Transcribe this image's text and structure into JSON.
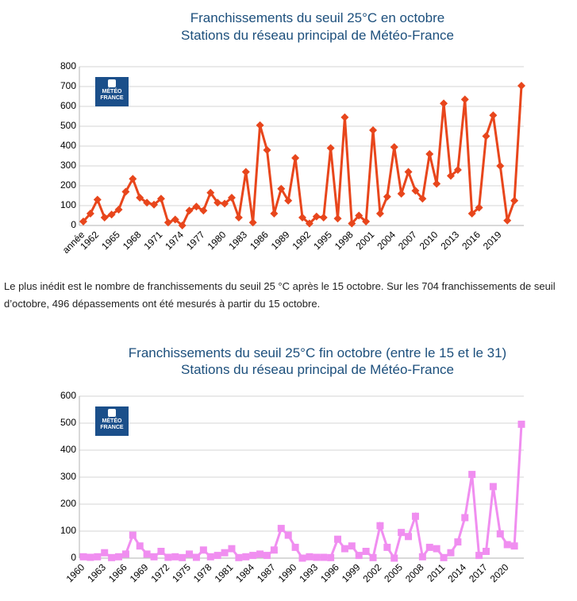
{
  "chart_data": [
    {
      "type": "line",
      "title": [
        "Franchissements du seuil 25°C en octobre",
        "Stations du réseau principal de Météo-France"
      ],
      "categories": [
        "année",
        null,
        "1962",
        null,
        null,
        "1965",
        null,
        null,
        "1968",
        null,
        null,
        "1971",
        null,
        null,
        "1974",
        null,
        null,
        "1977",
        null,
        null,
        "1980",
        null,
        null,
        "1983",
        null,
        null,
        "1986",
        null,
        null,
        "1989",
        null,
        null,
        "1992",
        null,
        null,
        "1995",
        null,
        null,
        "1998",
        null,
        null,
        "2001",
        null,
        null,
        "2004",
        null,
        null,
        "2007",
        null,
        null,
        "2010",
        null,
        null,
        "2013",
        null,
        null,
        "2016",
        null,
        null,
        "2019",
        null,
        null,
        null
      ],
      "series": [
        {
          "color": "#e8461c",
          "marker": "diamond",
          "values": [
            20,
            60,
            130,
            40,
            55,
            80,
            170,
            235,
            140,
            115,
            105,
            135,
            15,
            30,
            0,
            75,
            95,
            75,
            165,
            115,
            110,
            140,
            40,
            270,
            15,
            505,
            380,
            60,
            185,
            125,
            340,
            40,
            10,
            45,
            40,
            390,
            35,
            545,
            10,
            50,
            20,
            480,
            60,
            145,
            395,
            160,
            270,
            175,
            135,
            360,
            210,
            615,
            250,
            280,
            635,
            60,
            90,
            450,
            555,
            300,
            25,
            125,
            704
          ]
        }
      ],
      "ylim": [
        0,
        800
      ],
      "yticks": [
        0,
        100,
        200,
        300,
        400,
        500,
        600,
        700,
        800
      ],
      "grid": true
    },
    {
      "type": "line",
      "title": [
        "Franchissements du seuil 25°C fin octobre (entre le 15 et le 31)",
        "Stations du réseau principal de Météo-France"
      ],
      "categories": [
        "1960",
        null,
        null,
        "1963",
        null,
        null,
        "1966",
        null,
        null,
        "1969",
        null,
        null,
        "1972",
        null,
        null,
        "1975",
        null,
        null,
        "1978",
        null,
        null,
        "1981",
        null,
        null,
        "1984",
        null,
        null,
        "1987",
        null,
        null,
        "1990",
        null,
        null,
        "1993",
        null,
        null,
        "1996",
        null,
        null,
        "1999",
        null,
        null,
        "2002",
        null,
        null,
        "2005",
        null,
        null,
        "2008",
        null,
        null,
        "2011",
        null,
        null,
        "2014",
        null,
        null,
        "2017",
        null,
        null,
        "2020",
        null,
        null
      ],
      "series": [
        {
          "color": "#f08ef0",
          "marker": "square",
          "values": [
            5,
            3,
            5,
            20,
            2,
            5,
            15,
            85,
            45,
            15,
            5,
            25,
            3,
            5,
            2,
            15,
            3,
            30,
            5,
            10,
            20,
            35,
            2,
            5,
            10,
            15,
            10,
            30,
            110,
            85,
            40,
            0,
            5,
            3,
            3,
            2,
            70,
            35,
            45,
            10,
            25,
            2,
            120,
            40,
            0,
            95,
            80,
            155,
            5,
            40,
            35,
            2,
            20,
            60,
            150,
            310,
            10,
            25,
            265,
            90,
            50,
            45,
            496
          ]
        }
      ],
      "ylim": [
        0,
        600
      ],
      "yticks": [
        0,
        100,
        200,
        300,
        400,
        500,
        600
      ],
      "grid": true
    }
  ],
  "logo_lines": [
    "MÉTÉO",
    "FRANCE"
  ],
  "paragraph": "Le plus inédit est le nombre de franchissements du seuil 25 °C après le 15 octobre. Sur les 704 franchissements de seuil d’octobre, 496 dépassements ont été mesurés à partir du 15 octobre."
}
